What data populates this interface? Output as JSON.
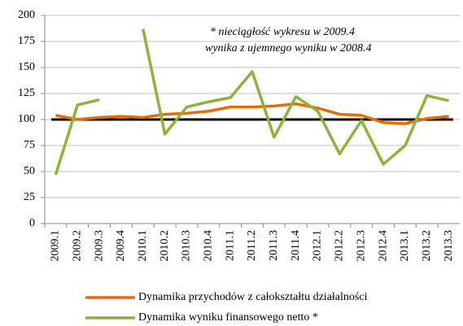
{
  "chart_data": {
    "type": "line",
    "categories": [
      "2009.1",
      "2009.2",
      "2009.3",
      "2009.4",
      "2010.1",
      "2010.2",
      "2010.3",
      "2010.4",
      "2011.1",
      "2011.2",
      "2011.3",
      "2011.4",
      "2012.1",
      "2012.2",
      "2012.3",
      "2012.4",
      "2013.1",
      "2013.2",
      "2013.3"
    ],
    "series": [
      {
        "name": "Dynamika przychodów z całokształtu działalności",
        "color": "#e36c09",
        "values": [
          104,
          100,
          102,
          103,
          102,
          105,
          106,
          108,
          112,
          112,
          113,
          115,
          111,
          105,
          104,
          97,
          96,
          101,
          103
        ]
      },
      {
        "name": "Dynamika wyniku finansowego netto *",
        "color": "#8cb43c",
        "values": [
          47,
          114,
          119,
          null,
          187,
          86,
          112,
          117,
          121,
          146,
          83,
          122,
          108,
          67,
          99,
          57,
          75,
          123,
          118
        ]
      }
    ],
    "reference_line": 100,
    "annotation": [
      "*  nieciągłość wykresu w 2009.4",
      "wynika z ujemnego wyniku w 2008.4"
    ],
    "ylim": [
      0,
      200
    ],
    "yticks": [
      0,
      25,
      50,
      75,
      100,
      125,
      150,
      175,
      200
    ],
    "grid": true,
    "legend": "bottom"
  }
}
